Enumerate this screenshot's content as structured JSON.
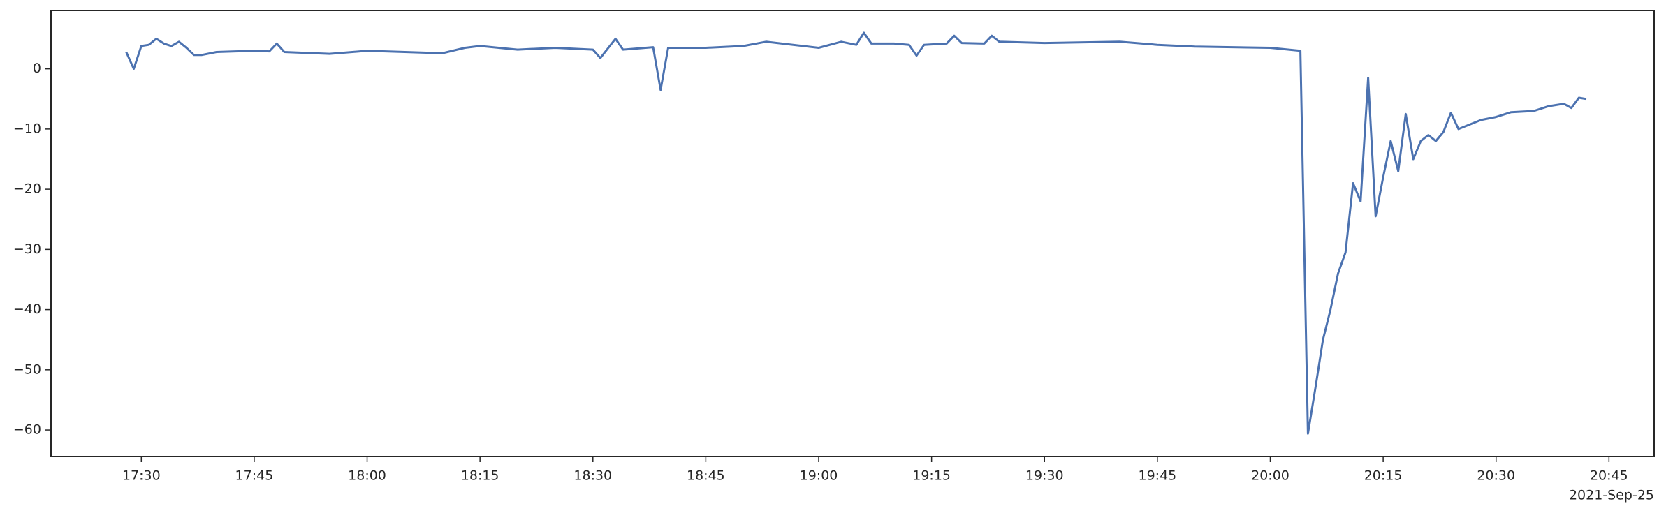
{
  "chart_data": {
    "type": "line",
    "x": [
      "17:28",
      "17:29",
      "17:30",
      "17:31",
      "17:32",
      "17:33",
      "17:34",
      "17:35",
      "17:36",
      "17:37",
      "17:38",
      "17:40",
      "17:45",
      "17:47",
      "17:48",
      "17:49",
      "17:55",
      "18:00",
      "18:05",
      "18:10",
      "18:13",
      "18:15",
      "18:20",
      "18:25",
      "18:30",
      "18:31",
      "18:33",
      "18:34",
      "18:38",
      "18:39",
      "18:40",
      "18:45",
      "18:50",
      "18:53",
      "19:00",
      "19:03",
      "19:05",
      "19:06",
      "19:07",
      "19:10",
      "19:12",
      "19:13",
      "19:14",
      "19:17",
      "19:18",
      "19:19",
      "19:22",
      "19:23",
      "19:24",
      "19:30",
      "19:40",
      "19:45",
      "19:50",
      "20:00",
      "20:04",
      "20:05",
      "20:06",
      "20:07",
      "20:08",
      "20:09",
      "20:10",
      "20:11",
      "20:12",
      "20:13",
      "20:14",
      "20:15",
      "20:16",
      "20:17",
      "20:18",
      "20:19",
      "20:20",
      "20:21",
      "20:22",
      "20:23",
      "20:24",
      "20:25",
      "20:28",
      "20:30",
      "20:32",
      "20:35",
      "20:37",
      "20:39",
      "20:40",
      "20:41",
      "20:42"
    ],
    "series": [
      {
        "color": "#4c72b0",
        "values": [
          2.8,
          0,
          3.8,
          4,
          5,
          4.2,
          3.8,
          4.5,
          3.5,
          2.3,
          2.3,
          2.8,
          3,
          2.9,
          4.2,
          2.8,
          2.5,
          3,
          2.8,
          2.6,
          3.5,
          3.8,
          3.2,
          3.5,
          3.2,
          1.8,
          5,
          3.2,
          3.6,
          -3.5,
          3.5,
          3.5,
          3.8,
          4.5,
          3.5,
          4.5,
          4,
          6,
          4.2,
          4.2,
          4,
          2.2,
          4,
          4.2,
          5.5,
          4.3,
          4.2,
          5.5,
          4.5,
          4.3,
          4.5,
          4,
          3.7,
          3.5,
          3,
          -60.6,
          -53,
          -45,
          -40,
          -34,
          -30.5,
          -19,
          -22,
          -1.5,
          -24.5,
          -18,
          -12,
          -17,
          -7.5,
          -15,
          -12,
          -11,
          -12,
          -10.5,
          -7.3,
          -10,
          -8.5,
          -8,
          -7.2,
          -7,
          -6.2,
          -5.8,
          -6.5,
          -4.8,
          -5
        ]
      }
    ],
    "xlim": [
      "17:18",
      "20:51"
    ],
    "xticks": [
      "17:30",
      "17:45",
      "18:00",
      "18:15",
      "18:30",
      "18:45",
      "19:00",
      "19:15",
      "19:30",
      "19:45",
      "20:00",
      "20:15",
      "20:30",
      "20:45"
    ],
    "x_offset_label": "2021-Sep-25",
    "ylim": [
      -64.4,
      9.7
    ],
    "yticks": [
      0,
      {
        "value": -10,
        "label": "−10"
      },
      {
        "value": -20,
        "label": "−20"
      },
      {
        "value": -30,
        "label": "−30"
      },
      {
        "value": -40,
        "label": "−40"
      },
      {
        "value": -50,
        "label": "−50"
      },
      {
        "value": -60,
        "label": "−60"
      }
    ]
  }
}
